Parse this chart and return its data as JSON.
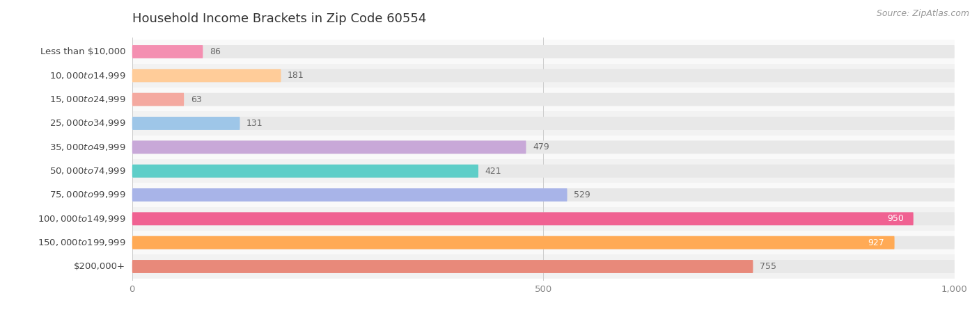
{
  "title": "Household Income Brackets in Zip Code 60554",
  "source": "Source: ZipAtlas.com",
  "categories": [
    "Less than $10,000",
    "$10,000 to $14,999",
    "$15,000 to $24,999",
    "$25,000 to $34,999",
    "$35,000 to $49,999",
    "$50,000 to $74,999",
    "$75,000 to $99,999",
    "$100,000 to $149,999",
    "$150,000 to $199,999",
    "$200,000+"
  ],
  "values": [
    86,
    181,
    63,
    131,
    479,
    421,
    529,
    950,
    927,
    755
  ],
  "bar_colors": [
    "#F48FB1",
    "#FFCC99",
    "#F4A9A0",
    "#9EC6E8",
    "#C8A8D8",
    "#5ECEC8",
    "#A8B4E8",
    "#F06292",
    "#FFAA55",
    "#E8897A"
  ],
  "xlim": [
    0,
    1000
  ],
  "xticks": [
    0,
    500,
    1000
  ],
  "xtick_labels": [
    "0",
    "500",
    "1,000"
  ],
  "background_color": "#f7f7f7",
  "bar_bg_color": "#e8e8e8",
  "row_bg_colors": [
    "#ffffff",
    "#f5f5f5"
  ],
  "title_fontsize": 13,
  "label_fontsize": 9.5,
  "value_fontsize": 9,
  "source_fontsize": 9,
  "bar_height": 0.55,
  "high_value_threshold": 850
}
